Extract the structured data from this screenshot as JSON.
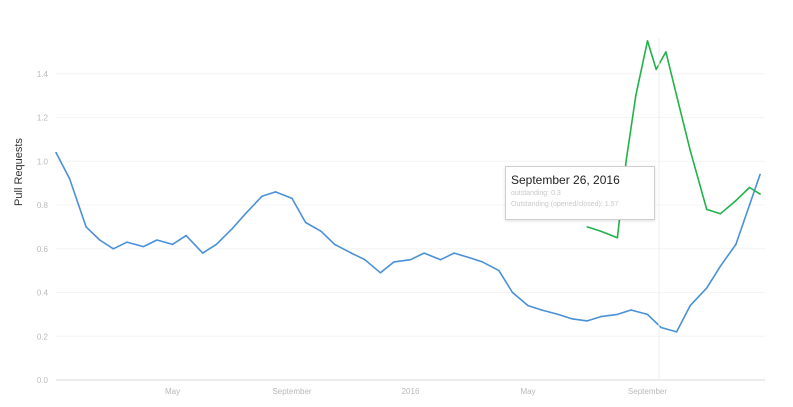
{
  "chart_data": {
    "type": "line",
    "ylabel": "Pull Requests",
    "ylim": [
      0.0,
      1.6
    ],
    "yticks": [
      "0.0",
      "0.2",
      "0.4",
      "0.6",
      "0.8",
      "1.0",
      "1.2",
      "1.4"
    ],
    "xticks": [
      "May",
      "September",
      "2016",
      "May",
      "September"
    ],
    "x_range": [
      "2015-01-01",
      "2016-12-31"
    ],
    "series": [
      {
        "color": "#4a90d9",
        "x": [
          "2015-01-01",
          "2015-01-15",
          "2015-02-01",
          "2015-02-15",
          "2015-03-01",
          "2015-03-15",
          "2015-04-01",
          "2015-04-15",
          "2015-05-01",
          "2015-05-15",
          "2015-06-01",
          "2015-06-15",
          "2015-07-01",
          "2015-07-15",
          "2015-08-01",
          "2015-08-15",
          "2015-09-01",
          "2015-09-15",
          "2015-10-01",
          "2015-10-15",
          "2015-11-01",
          "2015-11-15",
          "2015-12-01",
          "2015-12-15",
          "2016-01-01",
          "2016-01-15",
          "2016-02-01",
          "2016-02-15",
          "2016-03-01",
          "2016-03-15",
          "2016-04-01",
          "2016-04-15",
          "2016-05-01",
          "2016-05-15",
          "2016-06-01",
          "2016-06-15",
          "2016-07-01",
          "2016-07-15",
          "2016-08-01",
          "2016-08-15",
          "2016-09-01",
          "2016-09-15",
          "2016-10-01",
          "2016-10-15",
          "2016-11-01",
          "2016-11-15",
          "2016-12-01",
          "2016-12-15",
          "2016-12-26"
        ],
        "values": [
          1.04,
          0.92,
          0.7,
          0.64,
          0.6,
          0.63,
          0.61,
          0.64,
          0.62,
          0.66,
          0.58,
          0.62,
          0.69,
          0.76,
          0.84,
          0.86,
          0.83,
          0.72,
          0.68,
          0.62,
          0.58,
          0.55,
          0.49,
          0.54,
          0.55,
          0.58,
          0.55,
          0.58,
          0.56,
          0.54,
          0.5,
          0.4,
          0.34,
          0.32,
          0.3,
          0.28,
          0.27,
          0.29,
          0.3,
          0.32,
          0.3,
          0.24,
          0.22,
          0.34,
          0.42,
          0.52,
          0.62,
          0.8,
          0.94
        ]
      },
      {
        "color": "#21b24b",
        "x": [
          "2016-07-01",
          "2016-07-15",
          "2016-08-01",
          "2016-08-10",
          "2016-08-20",
          "2016-09-01",
          "2016-09-10",
          "2016-09-20",
          "2016-10-01",
          "2016-10-15",
          "2016-11-01",
          "2016-11-15",
          "2016-12-01",
          "2016-12-15",
          "2016-12-26"
        ],
        "values": [
          0.7,
          0.68,
          0.65,
          1.0,
          1.3,
          1.55,
          1.42,
          1.5,
          1.3,
          1.05,
          0.78,
          0.76,
          0.82,
          0.88,
          0.85
        ]
      }
    ]
  },
  "tooltip": {
    "title": "September 26, 2016",
    "row1": "outstanding: 0.3",
    "row2": "Outstanding (opened/closed): 1.57"
  }
}
